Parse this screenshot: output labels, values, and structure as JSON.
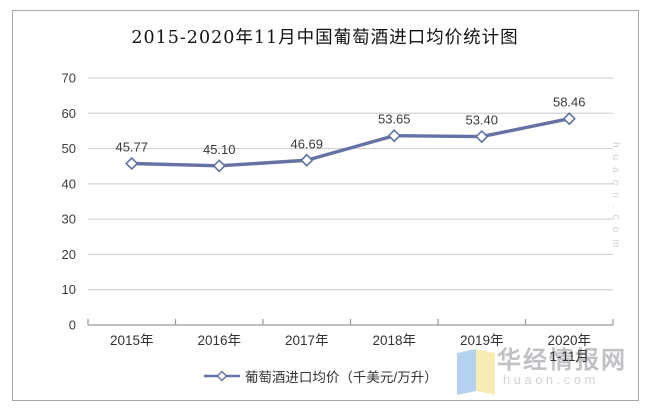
{
  "title": "2015-2020年11月中国葡萄酒进口均价统计图",
  "chart_data": {
    "type": "line",
    "title": "2015-2020年11月中国葡萄酒进口均价统计图",
    "categories": [
      "2015年",
      "2016年",
      "2017年",
      "2018年",
      "2019年",
      "2020年\n1-11月"
    ],
    "series": [
      {
        "name": "葡萄酒进口均价（千美元/万升）",
        "values": [
          45.77,
          45.1,
          46.69,
          53.65,
          53.4,
          58.46
        ],
        "point_labels": [
          "45.77",
          "45.10",
          "46.69",
          "53.65",
          "53.40",
          "58.46"
        ]
      }
    ],
    "xlabel": "",
    "ylabel": "",
    "ylim": [
      0,
      70
    ],
    "ytick_step": 10,
    "ytick_labels": [
      "0",
      "10",
      "20",
      "30",
      "40",
      "50",
      "60",
      "70"
    ],
    "grid": "horizontal",
    "legend_position": "bottom",
    "marker": "diamond-white"
  },
  "colors": {
    "line": "#6473a3",
    "marker_fill": "#ffffff",
    "gridline": "#d4d4d4",
    "axis": "#9b9b9b",
    "tick_text": "#3d3d3d",
    "data_label": "#3a3a3a",
    "frame_border": "#a8a8a8",
    "logo_blue": "#a9c9ee",
    "logo_yellow": "#f6e9a8",
    "watermark_brand": "#b4b7bc",
    "watermark_domain": "#c9ccd1"
  },
  "watermark": {
    "brand": "华经情报网",
    "domain": "huaon.com",
    "side_domain": "huaon.com"
  }
}
